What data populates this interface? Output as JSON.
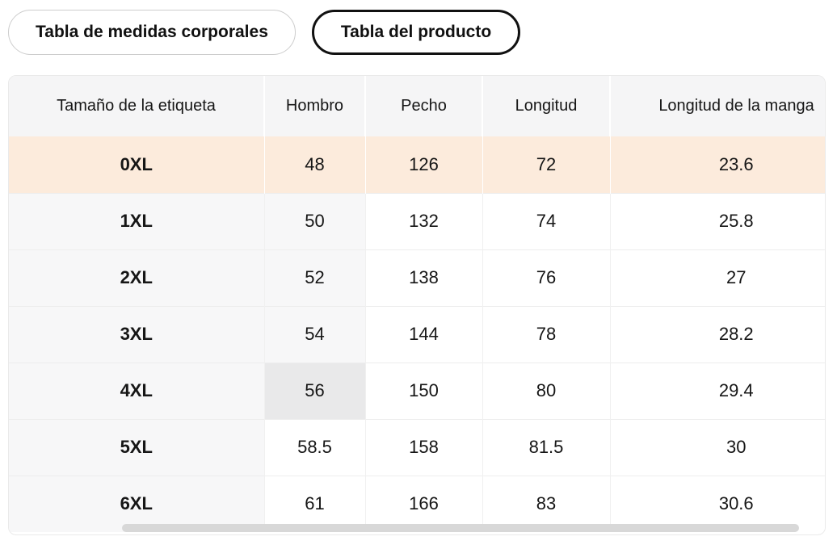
{
  "tabs": [
    {
      "label": "Tabla de medidas corporales",
      "selected": false
    },
    {
      "label": "Tabla del producto",
      "selected": true
    }
  ],
  "table": {
    "columns": [
      "Tamaño de la etiqueta",
      "Hombro",
      "Pecho",
      "Longitud",
      "Longitud de la manga"
    ],
    "rows": [
      {
        "label": "0XL",
        "values": [
          "48",
          "126",
          "72",
          "23.6"
        ],
        "row_bg": "peach",
        "hombro_bg": "none"
      },
      {
        "label": "1XL",
        "values": [
          "50",
          "132",
          "74",
          "25.8"
        ],
        "row_bg": "none",
        "hombro_bg": "light"
      },
      {
        "label": "2XL",
        "values": [
          "52",
          "138",
          "76",
          "27"
        ],
        "row_bg": "none",
        "hombro_bg": "light"
      },
      {
        "label": "3XL",
        "values": [
          "54",
          "144",
          "78",
          "28.2"
        ],
        "row_bg": "none",
        "hombro_bg": "light"
      },
      {
        "label": "4XL",
        "values": [
          "56",
          "150",
          "80",
          "29.4"
        ],
        "row_bg": "none",
        "hombro_bg": "selected"
      },
      {
        "label": "5XL",
        "values": [
          "58.5",
          "158",
          "81.5",
          "30"
        ],
        "row_bg": "none",
        "hombro_bg": "none"
      },
      {
        "label": "6XL",
        "values": [
          "61",
          "166",
          "83",
          "30.6"
        ],
        "row_bg": "none",
        "hombro_bg": "none"
      }
    ]
  },
  "colors": {
    "highlight_row": "#fcebdc",
    "header_bg": "#f5f5f6",
    "size_column_bg": "#f7f7f8",
    "selected_cell_bg": "#e9e9ea",
    "active_tab_border": "#111111",
    "inactive_tab_border": "#cdcdcd",
    "scrollbar_thumb": "#d8d8d8"
  }
}
